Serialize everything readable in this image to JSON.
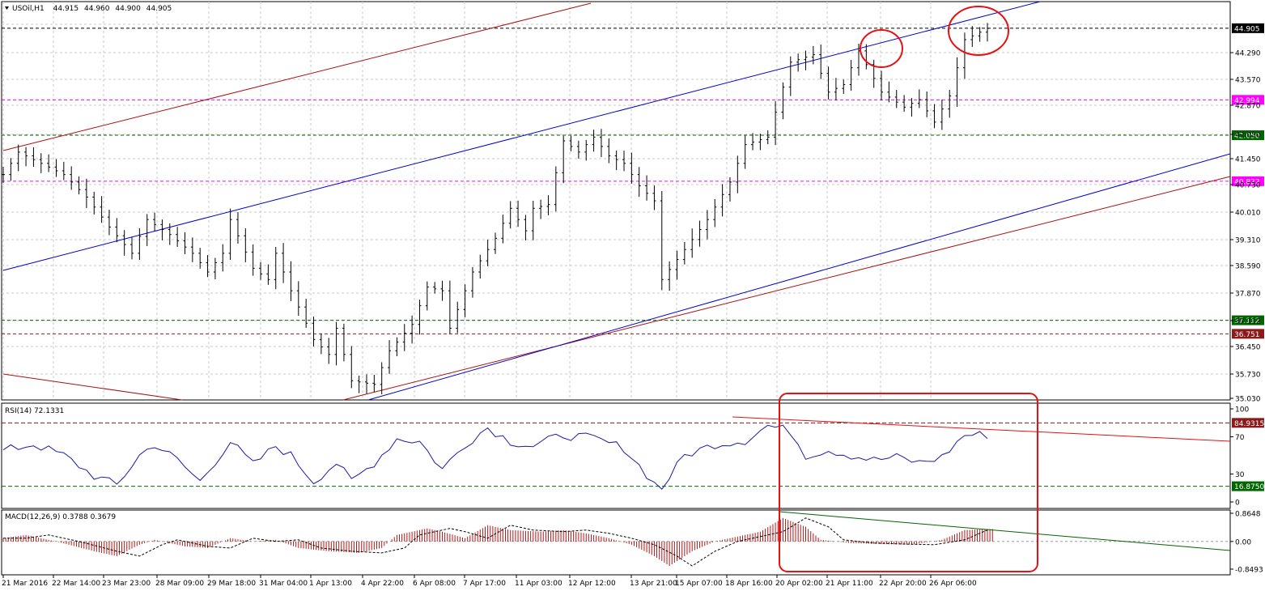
{
  "symbol": {
    "name": "USOil,H1",
    "open": "44.915",
    "high": "44.960",
    "low": "44.900",
    "close": "44.905"
  },
  "chart_data": [
    {
      "type": "candlestick",
      "title": "USOil,H1 44.915 44.960 44.900 44.905",
      "ylim": [
        35.03,
        45.01
      ],
      "yticks": [
        "44.290",
        "43.570",
        "42.870",
        "42.050",
        "41.450",
        "40.730",
        "40.010",
        "39.310",
        "38.590",
        "37.870",
        "37.112",
        "36.450",
        "35.730",
        "35.030"
      ],
      "xticks": [
        "21 Mar 2016",
        "22 Mar 14:00",
        "23 Mar 23:00",
        "28 Mar 09:00",
        "29 Mar 18:00",
        "31 Mar 04:00",
        "1 Apr 13:00",
        "4 Apr 22:00",
        "6 Apr 08:00",
        "7 Apr 17:00",
        "11 Apr 03:00",
        "12 Apr 12:00",
        "13 Apr 21:00",
        "15 Apr 07:00",
        "18 Apr 16:00",
        "20 Apr 02:00",
        "21 Apr 11:00",
        "22 Apr 20:00",
        "26 Apr 06:00"
      ],
      "price_path": [
        [
          0,
          41.0
        ],
        [
          2,
          41.6
        ],
        [
          5,
          41.3
        ],
        [
          8,
          41.0
        ],
        [
          11,
          40.4
        ],
        [
          14,
          39.6
        ],
        [
          17,
          38.9
        ],
        [
          19,
          39.8
        ],
        [
          22,
          39.4
        ],
        [
          25,
          38.9
        ],
        [
          27,
          38.4
        ],
        [
          29,
          38.9
        ],
        [
          30,
          39.8
        ],
        [
          33,
          38.5
        ],
        [
          35,
          38.2
        ],
        [
          36,
          38.9
        ],
        [
          38,
          37.9
        ],
        [
          41,
          36.6
        ],
        [
          43,
          36.2
        ],
        [
          44,
          36.9
        ],
        [
          46,
          35.5
        ],
        [
          49,
          35.4
        ],
        [
          51,
          36.3
        ],
        [
          54,
          37.0
        ],
        [
          56,
          38.0
        ],
        [
          58,
          37.9
        ],
        [
          59,
          36.9
        ],
        [
          62,
          38.4
        ],
        [
          65,
          39.3
        ],
        [
          67,
          40.1
        ],
        [
          69,
          39.5
        ],
        [
          70,
          40.1
        ],
        [
          72,
          40.2
        ],
        [
          74,
          41.9
        ],
        [
          76,
          41.6
        ],
        [
          78,
          42.0
        ],
        [
          80,
          41.5
        ],
        [
          82,
          41.3
        ],
        [
          84,
          40.7
        ],
        [
          86,
          40.3
        ],
        [
          87,
          38.2
        ],
        [
          90,
          39.0
        ],
        [
          93,
          39.8
        ],
        [
          96,
          40.8
        ],
        [
          98,
          41.8
        ],
        [
          101,
          42.0
        ],
        [
          104,
          44.0
        ],
        [
          107,
          44.2
        ],
        [
          109,
          43.2
        ],
        [
          111,
          43.4
        ],
        [
          113,
          44.3
        ],
        [
          116,
          43.2
        ],
        [
          119,
          42.8
        ],
        [
          121,
          43.0
        ],
        [
          123,
          42.4
        ],
        [
          125,
          43.1
        ],
        [
          127,
          44.6
        ],
        [
          129,
          44.8
        ],
        [
          130,
          44.9
        ]
      ],
      "candle_count": 131,
      "horizontal_levels": [
        {
          "label": "44.905",
          "value": 44.905,
          "style": "black"
        },
        {
          "label": "42.994",
          "value": 42.994,
          "style": "magenta"
        },
        {
          "label": "42.050",
          "value": 42.05,
          "style": "green"
        },
        {
          "label": "40.822",
          "value": 40.822,
          "style": "magenta"
        },
        {
          "label": "37.112",
          "value": 37.112,
          "style": "green"
        },
        {
          "label": "36.751",
          "value": 36.751,
          "style": "darkred"
        }
      ],
      "colors": {
        "candles": "#000000",
        "upper_channel": "#0000cc",
        "brown_channel": "#aa1111",
        "magenta": "#ff00ff",
        "green": "#006600",
        "highlight": "#e81010"
      }
    },
    {
      "type": "line",
      "title": "RSI(14) 72.1331",
      "ylim": [
        0,
        100
      ],
      "yticks": [
        "100",
        "70",
        "30",
        "0"
      ],
      "levels": [
        {
          "label": "84.9315",
          "value": 84.9315
        },
        {
          "label": "16.8750",
          "value": 16.875
        }
      ],
      "series_path": [
        [
          0,
          55
        ],
        [
          4,
          62
        ],
        [
          8,
          50
        ],
        [
          12,
          28
        ],
        [
          15,
          18
        ],
        [
          18,
          50
        ],
        [
          20,
          62
        ],
        [
          23,
          45
        ],
        [
          26,
          22
        ],
        [
          30,
          65
        ],
        [
          33,
          40
        ],
        [
          36,
          60
        ],
        [
          38,
          50
        ],
        [
          41,
          22
        ],
        [
          44,
          42
        ],
        [
          46,
          22
        ],
        [
          49,
          42
        ],
        [
          52,
          68
        ],
        [
          55,
          65
        ],
        [
          58,
          35
        ],
        [
          61,
          62
        ],
        [
          64,
          80
        ],
        [
          67,
          65
        ],
        [
          70,
          60
        ],
        [
          74,
          72
        ],
        [
          78,
          68
        ],
        [
          82,
          58
        ],
        [
          86,
          20
        ],
        [
          87,
          15
        ],
        [
          90,
          50
        ],
        [
          94,
          62
        ],
        [
          98,
          66
        ],
        [
          101,
          82
        ],
        [
          104,
          76
        ],
        [
          106,
          50
        ],
        [
          109,
          56
        ],
        [
          112,
          50
        ],
        [
          115,
          45
        ],
        [
          118,
          48
        ],
        [
          121,
          42
        ],
        [
          124,
          48
        ],
        [
          127,
          72
        ],
        [
          130,
          72
        ]
      ]
    },
    {
      "type": "bar",
      "title": "MACD(12,26,9) 0.3788 0.3679",
      "ylim": [
        -0.8493,
        0.8648
      ],
      "yticks": [
        "0.8648",
        "0.00",
        "-0.8493"
      ],
      "series_path": [
        [
          0,
          0.1
        ],
        [
          3,
          0.2
        ],
        [
          7,
          0.0
        ],
        [
          12,
          -0.3
        ],
        [
          15,
          -0.45
        ],
        [
          18,
          -0.1
        ],
        [
          20,
          0.05
        ],
        [
          24,
          -0.15
        ],
        [
          27,
          -0.2
        ],
        [
          30,
          0.1
        ],
        [
          33,
          0.0
        ],
        [
          36,
          0.05
        ],
        [
          39,
          -0.2
        ],
        [
          43,
          -0.3
        ],
        [
          47,
          -0.35
        ],
        [
          50,
          -0.2
        ],
        [
          52,
          0.2
        ],
        [
          56,
          0.4
        ],
        [
          58,
          0.3
        ],
        [
          61,
          0.1
        ],
        [
          64,
          0.5
        ],
        [
          67,
          0.35
        ],
        [
          71,
          0.3
        ],
        [
          74,
          0.35
        ],
        [
          77,
          0.25
        ],
        [
          80,
          0.1
        ],
        [
          83,
          -0.1
        ],
        [
          86,
          -0.45
        ],
        [
          88,
          -0.75
        ],
        [
          91,
          -0.3
        ],
        [
          94,
          0.0
        ],
        [
          97,
          0.15
        ],
        [
          100,
          0.3
        ],
        [
          103,
          0.72
        ],
        [
          106,
          0.45
        ],
        [
          108,
          0.05
        ],
        [
          112,
          -0.05
        ],
        [
          116,
          -0.08
        ],
        [
          120,
          -0.1
        ],
        [
          124,
          0.05
        ],
        [
          127,
          0.35
        ],
        [
          130,
          0.38
        ]
      ]
    }
  ]
}
